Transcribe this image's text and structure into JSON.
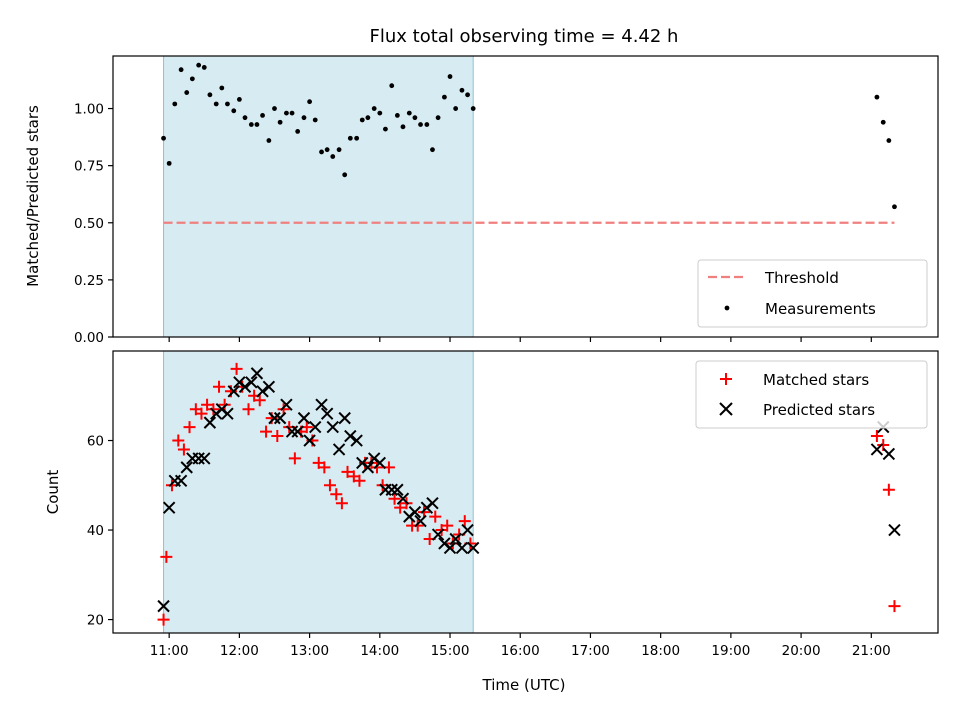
{
  "chart_data": [
    {
      "type": "scatter",
      "title": "Flux total observing time = 4.42 h",
      "ylabel": "Matched/Predicted stars",
      "ylim": [
        0,
        1.23
      ],
      "yticks": [
        0.0,
        0.25,
        0.5,
        0.75,
        1.0
      ],
      "ytick_labels": [
        "0.00",
        "0.25",
        "0.50",
        "0.75",
        "1.00"
      ],
      "x_unit": "hours (UTC)",
      "xlim": [
        10.2,
        21.95
      ],
      "shaded_interval": {
        "from": 10.92,
        "to": 15.33,
        "color": "#add8e6"
      },
      "threshold": {
        "name": "Threshold",
        "value": 0.5,
        "x": [
          10.92,
          21.33
        ],
        "color": "#f08080",
        "style": "dashed"
      },
      "series": [
        {
          "name": "Measurements",
          "marker": "dot",
          "color": "#000000",
          "x": [
            10.92,
            11.0,
            11.08,
            11.17,
            11.25,
            11.33,
            11.42,
            11.5,
            11.58,
            11.67,
            11.75,
            11.83,
            11.92,
            12.0,
            12.08,
            12.17,
            12.25,
            12.33,
            12.42,
            12.5,
            12.58,
            12.67,
            12.75,
            12.83,
            12.92,
            13.0,
            13.08,
            13.17,
            13.25,
            13.33,
            13.42,
            13.5,
            13.58,
            13.67,
            13.75,
            13.83,
            13.92,
            14.0,
            14.08,
            14.17,
            14.25,
            14.33,
            14.42,
            14.5,
            14.58,
            14.67,
            14.75,
            14.83,
            14.92,
            15.0,
            15.08,
            15.17,
            15.25,
            15.33,
            21.08,
            21.17,
            21.25,
            21.33
          ],
          "y": [
            0.87,
            0.76,
            1.02,
            1.17,
            1.07,
            1.13,
            1.19,
            1.18,
            1.06,
            1.02,
            1.09,
            1.02,
            0.99,
            1.04,
            0.96,
            0.93,
            0.93,
            0.97,
            0.86,
            1.0,
            0.94,
            0.98,
            0.98,
            0.9,
            0.96,
            1.03,
            0.95,
            0.81,
            0.82,
            0.79,
            0.82,
            0.71,
            0.87,
            0.87,
            0.95,
            0.96,
            1.0,
            0.98,
            0.91,
            1.1,
            0.97,
            0.92,
            0.98,
            0.96,
            0.93,
            0.93,
            0.82,
            0.96,
            1.05,
            1.14,
            1.0,
            1.08,
            1.06,
            1.0,
            1.05,
            0.94,
            0.86,
            0.57
          ]
        }
      ],
      "legend": [
        "Threshold",
        "Measurements"
      ],
      "legend_position": "bottom-right"
    },
    {
      "type": "scatter",
      "xlabel": "Time (UTC)",
      "ylabel": "Count",
      "ylim": [
        17,
        80
      ],
      "yticks": [
        20,
        40,
        60
      ],
      "ytick_labels": [
        "20",
        "40",
        "60"
      ],
      "x_unit": "hours (UTC)",
      "xlim": [
        10.2,
        21.95
      ],
      "xticks": [
        11,
        12,
        13,
        14,
        15,
        16,
        17,
        18,
        19,
        20,
        21
      ],
      "xtick_labels": [
        "11:00",
        "12:00",
        "13:00",
        "14:00",
        "15:00",
        "16:00",
        "17:00",
        "18:00",
        "19:00",
        "20:00",
        "21:00"
      ],
      "shaded_interval": {
        "from": 10.92,
        "to": 15.33,
        "color": "#add8e6"
      },
      "series": [
        {
          "name": "Matched stars",
          "marker": "plus",
          "color": "#ff0000",
          "x": [
            10.92,
            10.96,
            11.04,
            11.13,
            11.21,
            11.29,
            11.38,
            11.46,
            11.54,
            11.63,
            11.71,
            11.79,
            11.88,
            11.96,
            12.04,
            12.13,
            12.21,
            12.29,
            12.38,
            12.46,
            12.54,
            12.63,
            12.71,
            12.79,
            12.88,
            12.96,
            13.04,
            13.13,
            13.21,
            13.29,
            13.38,
            13.46,
            13.54,
            13.63,
            13.71,
            13.79,
            13.88,
            13.96,
            14.04,
            14.13,
            14.21,
            14.29,
            14.38,
            14.46,
            14.54,
            14.63,
            14.71,
            14.79,
            14.88,
            14.96,
            15.04,
            15.13,
            15.21,
            15.29,
            21.08,
            21.17,
            21.25,
            21.33
          ],
          "y": [
            20,
            34,
            50,
            60,
            58,
            63,
            67,
            66,
            68,
            67,
            72,
            68,
            71,
            76,
            72,
            67,
            70,
            69,
            62,
            65,
            61,
            67,
            63,
            56,
            62,
            63,
            60,
            55,
            54,
            50,
            48,
            46,
            53,
            52,
            51,
            55,
            55,
            54,
            50,
            54,
            47,
            45,
            46,
            41,
            41,
            44,
            38,
            43,
            40,
            41,
            37,
            39,
            42,
            37,
            61,
            59,
            49,
            23
          ]
        },
        {
          "name": "Predicted stars",
          "marker": "x",
          "color": "#000000",
          "x": [
            10.92,
            11.0,
            11.08,
            11.17,
            11.25,
            11.33,
            11.42,
            11.5,
            11.58,
            11.67,
            11.75,
            11.83,
            11.92,
            12.0,
            12.08,
            12.17,
            12.25,
            12.33,
            12.42,
            12.5,
            12.58,
            12.67,
            12.75,
            12.83,
            12.92,
            13.0,
            13.08,
            13.17,
            13.25,
            13.33,
            13.42,
            13.5,
            13.58,
            13.67,
            13.75,
            13.83,
            13.92,
            14.0,
            14.08,
            14.17,
            14.25,
            14.33,
            14.42,
            14.5,
            14.58,
            14.67,
            14.75,
            14.83,
            14.92,
            15.0,
            15.08,
            15.17,
            15.25,
            15.33,
            21.08,
            21.17,
            21.25,
            21.33
          ],
          "y": [
            23,
            45,
            51,
            51,
            54,
            56,
            56,
            56,
            64,
            66,
            67,
            66,
            71,
            73,
            72,
            73,
            75,
            71,
            72,
            65,
            65,
            68,
            62,
            62,
            65,
            60,
            63,
            68,
            66,
            63,
            58,
            65,
            61,
            60,
            55,
            54,
            56,
            55,
            49,
            49,
            49,
            47,
            43,
            44,
            42,
            45,
            46,
            39,
            37,
            36,
            38,
            36,
            40,
            36,
            58,
            63,
            57,
            40
          ]
        }
      ],
      "legend": [
        "Matched stars",
        "Predicted stars"
      ],
      "legend_position": "top-right"
    }
  ]
}
